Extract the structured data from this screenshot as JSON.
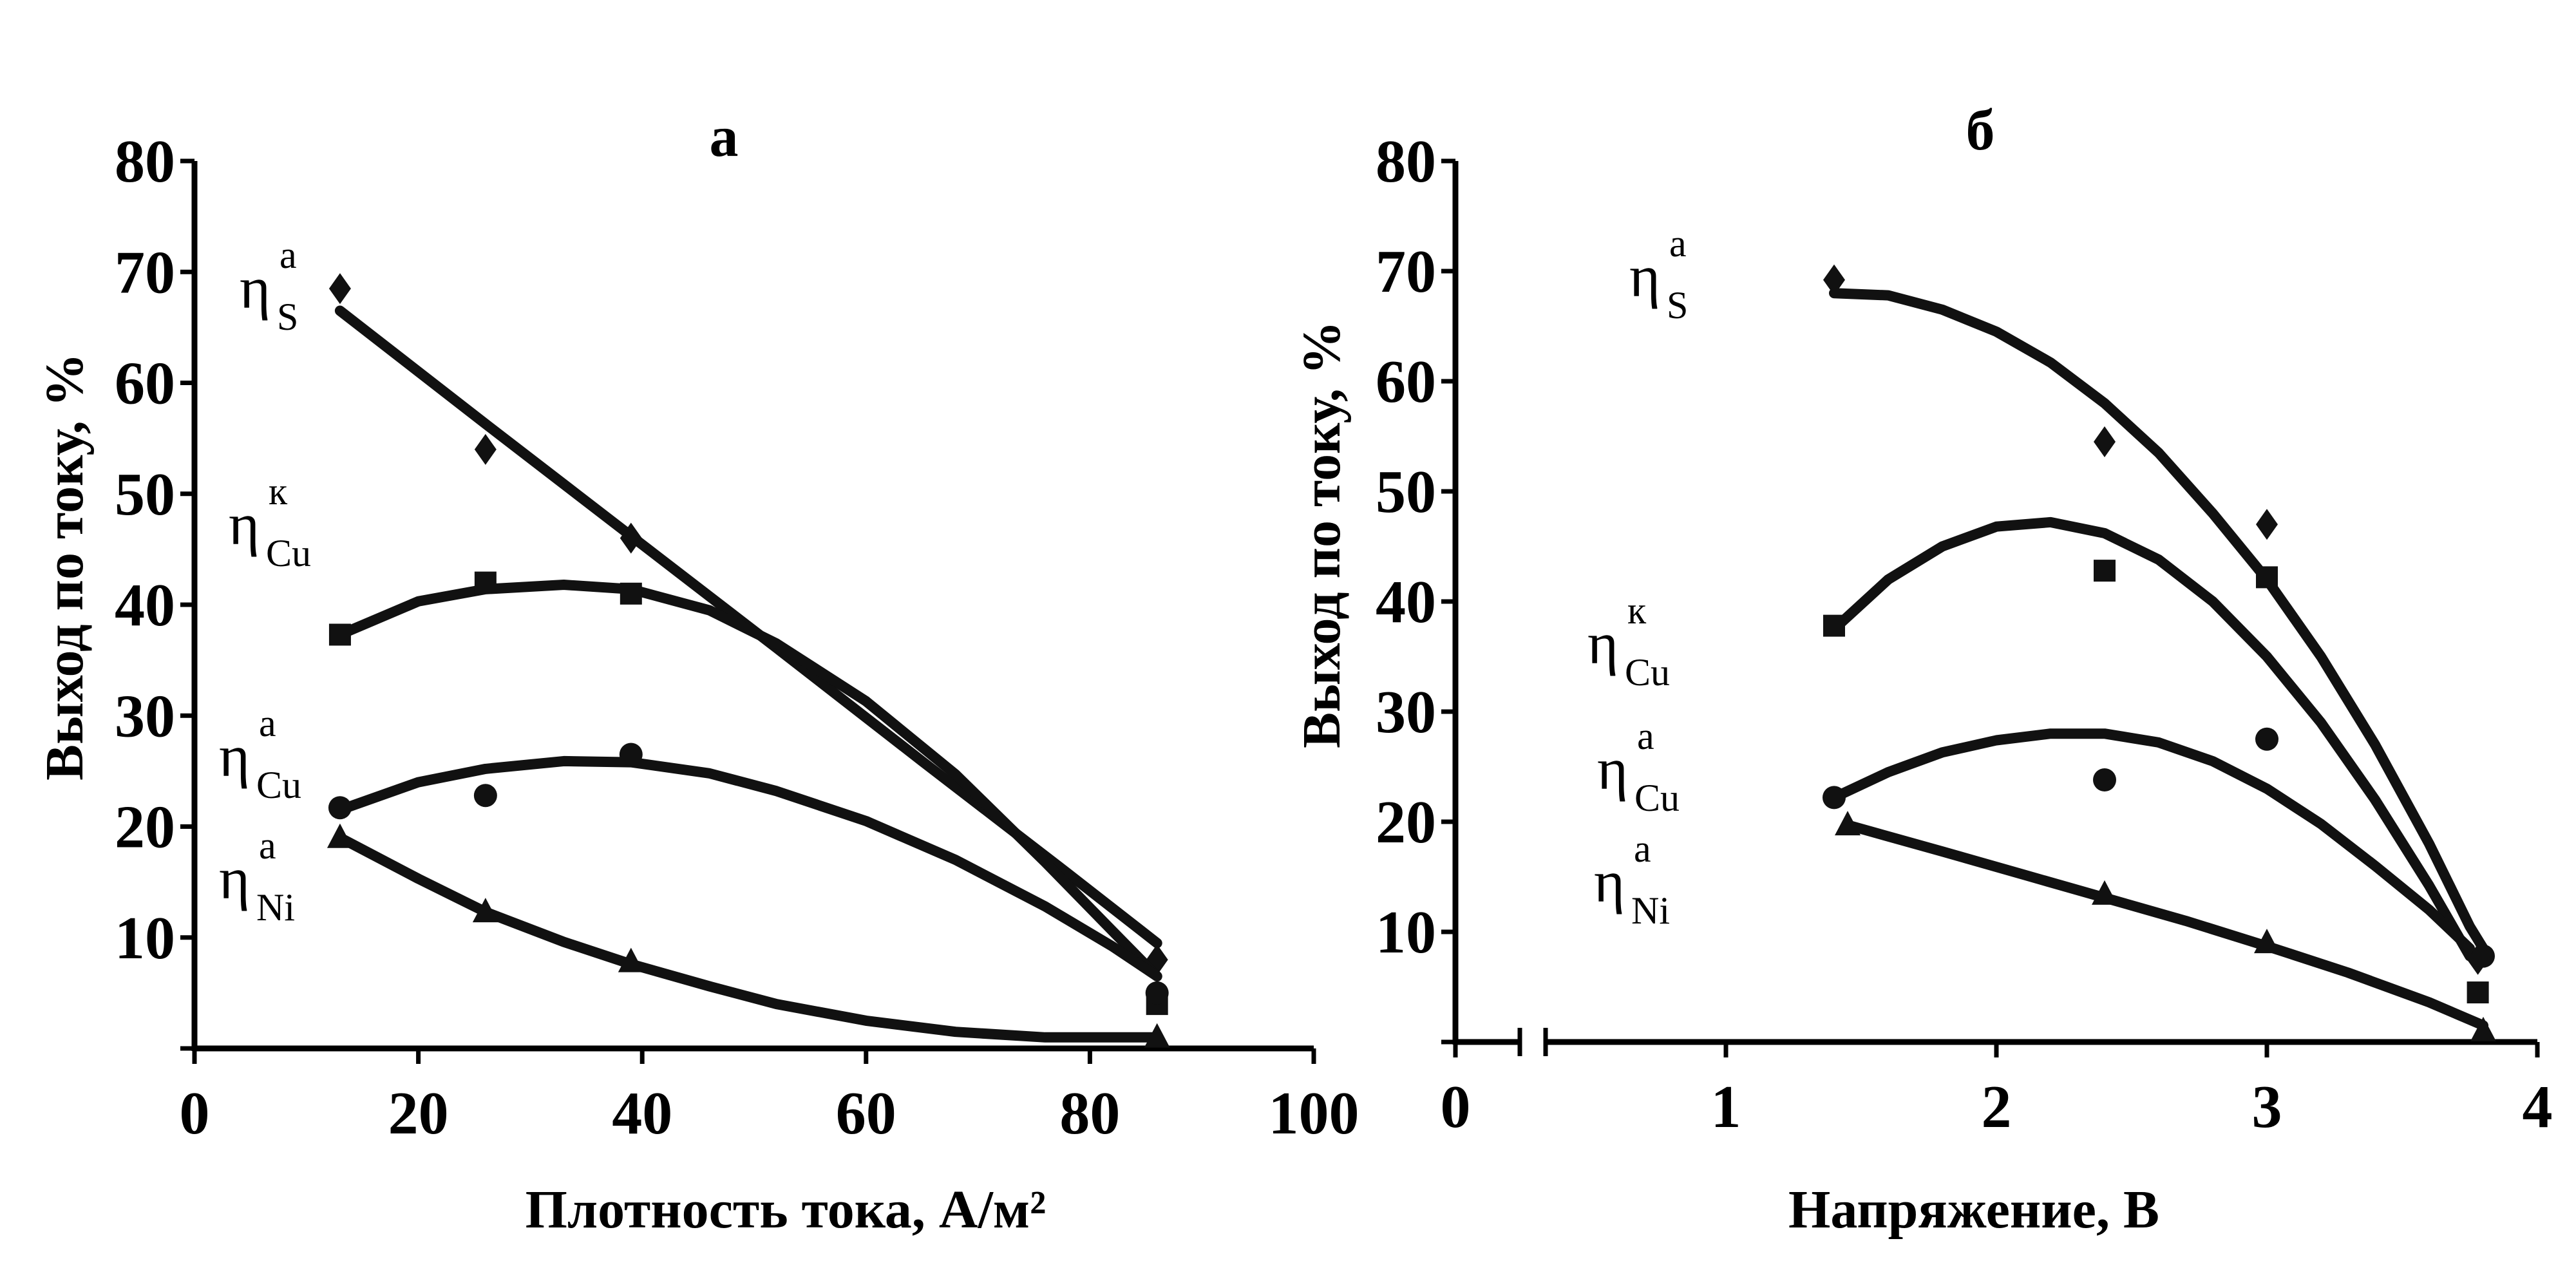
{
  "chart_data": [
    {
      "type": "scatter",
      "title": "а",
      "xlabel": "Плотность тока, А/м²",
      "ylabel": "Выход по току, %",
      "xlim": [
        0,
        100
      ],
      "ylim": [
        0,
        80
      ],
      "x_ticks": [
        "0",
        "20",
        "40",
        "60",
        "80",
        "100"
      ],
      "y_ticks": [
        "10",
        "20",
        "30",
        "40",
        "50",
        "60",
        "70",
        "80"
      ],
      "series": [
        {
          "label_main": "η",
          "label_sup": "а",
          "label_sub": "S",
          "marker": "diamond",
          "points": [
            [
              13,
              68.5
            ],
            [
              26,
              54
            ],
            [
              39,
              46
            ],
            [
              86,
              8
            ]
          ],
          "fit": [
            [
              13,
              66.5
            ],
            [
              26,
              56.3
            ],
            [
              39,
              46.2
            ],
            [
              52,
              36.1
            ],
            [
              65,
              25.9
            ],
            [
              78,
              15.8
            ],
            [
              86,
              9.5
            ]
          ]
        },
        {
          "label_main": "η",
          "label_sup": "к",
          "label_sub": "Cu",
          "marker": "square",
          "points": [
            [
              13,
              37.3
            ],
            [
              26,
              42
            ],
            [
              39,
              41
            ],
            [
              86,
              4
            ]
          ],
          "fit": [
            [
              13,
              37.3
            ],
            [
              20,
              40.3
            ],
            [
              26,
              41.4
            ],
            [
              33,
              41.8
            ],
            [
              39,
              41.4
            ],
            [
              46,
              39.5
            ],
            [
              52,
              36.5
            ],
            [
              60,
              31.3
            ],
            [
              68,
              24.7
            ],
            [
              76,
              16.8
            ],
            [
              82,
              10.6
            ],
            [
              86,
              6.5
            ]
          ]
        },
        {
          "label_main": "η",
          "label_sup": "а",
          "label_sub": "Cu",
          "marker": "circle",
          "points": [
            [
              13,
              21.7
            ],
            [
              26,
              22.8
            ],
            [
              39,
              26.5
            ],
            [
              86,
              5
            ]
          ],
          "fit": [
            [
              13,
              21.5
            ],
            [
              20,
              24
            ],
            [
              26,
              25.2
            ],
            [
              33,
              25.9
            ],
            [
              39,
              25.8
            ],
            [
              46,
              24.8
            ],
            [
              52,
              23.2
            ],
            [
              60,
              20.5
            ],
            [
              68,
              17
            ],
            [
              76,
              12.8
            ],
            [
              82,
              9.2
            ],
            [
              86,
              6.5
            ]
          ]
        },
        {
          "label_main": "η",
          "label_sup": "а",
          "label_sub": "Ni",
          "marker": "triangle",
          "points": [
            [
              13,
              19
            ],
            [
              26,
              12.3
            ],
            [
              39,
              7.8
            ],
            [
              86,
              1
            ]
          ],
          "fit": [
            [
              13,
              19
            ],
            [
              20,
              15.3
            ],
            [
              26,
              12.3
            ],
            [
              33,
              9.6
            ],
            [
              39,
              7.6
            ],
            [
              46,
              5.6
            ],
            [
              52,
              4
            ],
            [
              60,
              2.5
            ],
            [
              68,
              1.5
            ],
            [
              76,
              1
            ],
            [
              86,
              1
            ]
          ]
        }
      ]
    },
    {
      "type": "scatter",
      "title": "б",
      "xlabel": "Напряжение, В",
      "ylabel": "Выход по току, %",
      "xlim": [
        0,
        4
      ],
      "ylim": [
        0,
        80
      ],
      "x_ticks": [
        "0",
        "1",
        "2",
        "3",
        "4"
      ],
      "y_ticks": [
        "10",
        "20",
        "30",
        "40",
        "50",
        "60",
        "70",
        "80"
      ],
      "axis_break": true,
      "series": [
        {
          "label_main": "η",
          "label_sup": "а",
          "label_sub": "S",
          "marker": "diamond",
          "points": [
            [
              1.4,
              69.2
            ],
            [
              2.4,
              54.5
            ],
            [
              3.0,
              47
            ],
            [
              3.78,
              7.5
            ]
          ],
          "fit": [
            [
              1.4,
              68
            ],
            [
              1.6,
              67.8
            ],
            [
              1.8,
              66.5
            ],
            [
              2.0,
              64.5
            ],
            [
              2.2,
              61.7
            ],
            [
              2.4,
              58
            ],
            [
              2.6,
              53.5
            ],
            [
              2.8,
              48
            ],
            [
              3.0,
              42
            ],
            [
              3.2,
              35
            ],
            [
              3.4,
              27
            ],
            [
              3.6,
              18
            ],
            [
              3.75,
              10.5
            ],
            [
              3.8,
              8.5
            ]
          ]
        },
        {
          "label_main": "η",
          "label_sup": "к",
          "label_sub": "Cu",
          "marker": "square",
          "points": [
            [
              1.4,
              37.8
            ],
            [
              2.4,
              42.8
            ],
            [
              3.0,
              42.2
            ],
            [
              3.78,
              4.5
            ]
          ],
          "fit": [
            [
              1.4,
              37.5
            ],
            [
              1.6,
              42
            ],
            [
              1.8,
              45
            ],
            [
              2.0,
              46.8
            ],
            [
              2.2,
              47.2
            ],
            [
              2.4,
              46.2
            ],
            [
              2.6,
              43.8
            ],
            [
              2.8,
              40
            ],
            [
              3.0,
              35
            ],
            [
              3.2,
              29
            ],
            [
              3.4,
              22
            ],
            [
              3.6,
              14.2
            ],
            [
              3.75,
              7.8
            ]
          ]
        },
        {
          "label_main": "η",
          "label_sup": "а",
          "label_sub": "Cu",
          "marker": "circle",
          "points": [
            [
              1.4,
              22.2
            ],
            [
              2.4,
              23.8
            ],
            [
              3.0,
              27.5
            ],
            [
              3.8,
              7.8
            ]
          ],
          "fit": [
            [
              1.4,
              22.2
            ],
            [
              1.6,
              24.5
            ],
            [
              1.8,
              26.3
            ],
            [
              2.0,
              27.4
            ],
            [
              2.2,
              28
            ],
            [
              2.4,
              28
            ],
            [
              2.6,
              27.2
            ],
            [
              2.8,
              25.5
            ],
            [
              3.0,
              23
            ],
            [
              3.2,
              19.8
            ],
            [
              3.4,
              16
            ],
            [
              3.6,
              12
            ],
            [
              3.75,
              8.5
            ]
          ]
        },
        {
          "label_main": "η",
          "label_sup": "а",
          "label_sub": "Ni",
          "marker": "triangle",
          "points": [
            [
              1.45,
              19.7
            ],
            [
              2.4,
              13.4
            ],
            [
              3.0,
              9
            ],
            [
              3.8,
              1
            ]
          ],
          "fit": [
            [
              1.45,
              19.7
            ],
            [
              1.8,
              17.3
            ],
            [
              2.1,
              15.2
            ],
            [
              2.4,
              13.1
            ],
            [
              2.7,
              11
            ],
            [
              3.0,
              8.7
            ],
            [
              3.3,
              6.3
            ],
            [
              3.6,
              3.6
            ],
            [
              3.8,
              1.5
            ]
          ]
        }
      ]
    }
  ]
}
